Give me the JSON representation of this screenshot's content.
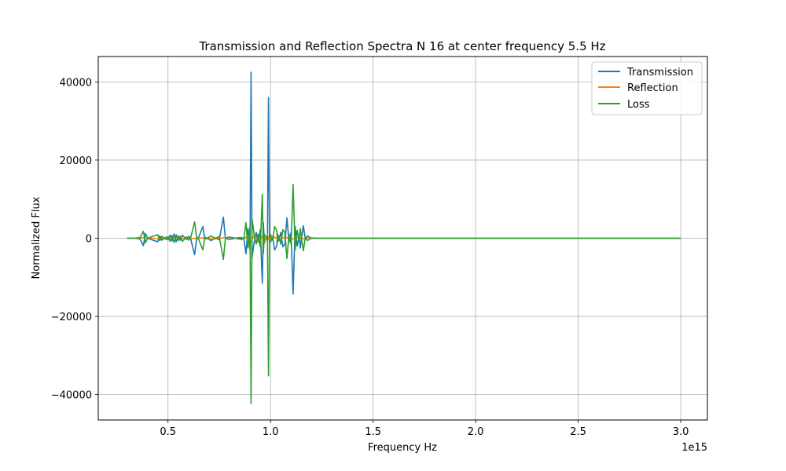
{
  "chart_data": {
    "type": "line",
    "title": "Transmission and Reflection Spectra N 16 at center frequency 5.5 Hz",
    "xlabel": "Frequency Hz",
    "ylabel": "Normalized Flux",
    "x_offset_label": "1e15",
    "xlim": [
      0.16,
      3.13
    ],
    "ylim": [
      -46500,
      46500
    ],
    "x_ticks": [
      0.5,
      1.0,
      1.5,
      2.0,
      2.5,
      3.0
    ],
    "x_tick_labels": [
      "0.5",
      "1.0",
      "1.5",
      "2.0",
      "2.5",
      "3.0"
    ],
    "y_ticks": [
      -40000,
      -20000,
      0,
      20000,
      40000
    ],
    "y_tick_labels": [
      "−40000",
      "−20000",
      "0",
      "20000",
      "40000"
    ],
    "grid": true,
    "legend_position": "top-right",
    "series": [
      {
        "name": "Transmission",
        "color": "#1f77b4",
        "x": [
          0.3,
          0.34,
          0.36,
          0.38,
          0.39,
          0.4,
          0.45,
          0.46,
          0.47,
          0.49,
          0.5,
          0.51,
          0.52,
          0.53,
          0.54,
          0.55,
          0.56,
          0.57,
          0.59,
          0.6,
          0.61,
          0.63,
          0.64,
          0.65,
          0.67,
          0.68,
          0.69,
          0.71,
          0.73,
          0.75,
          0.77,
          0.78,
          0.8,
          0.83,
          0.85,
          0.87,
          0.88,
          0.89,
          0.9,
          0.905,
          0.91,
          0.92,
          0.93,
          0.94,
          0.95,
          0.96,
          0.965,
          0.97,
          0.98,
          0.985,
          0.99,
          0.995,
          1.0,
          1.01,
          1.02,
          1.03,
          1.035,
          1.04,
          1.05,
          1.06,
          1.07,
          1.08,
          1.09,
          1.1,
          1.11,
          1.12,
          1.13,
          1.14,
          1.145,
          1.15,
          1.16,
          1.17,
          1.18,
          1.19,
          1.2,
          1.21,
          1.22,
          1.23,
          1.24,
          1.3,
          1.55,
          3.0
        ],
        "values": [
          0,
          0,
          200,
          -1900,
          1200,
          0,
          -900,
          600,
          -500,
          300,
          -400,
          800,
          -700,
          1100,
          -900,
          600,
          -500,
          800,
          -300,
          500,
          0,
          -4200,
          0,
          300,
          3000,
          -300,
          0,
          -600,
          0,
          -400,
          5400,
          0,
          -300,
          0,
          200,
          0,
          -4000,
          2500,
          -3000,
          42500,
          -5000,
          -1000,
          1500,
          -1000,
          2200,
          -11500,
          4000,
          -1000,
          0,
          -600,
          36000,
          0,
          -1000,
          500,
          -3000,
          -2000,
          1000,
          -600,
          1500,
          -2200,
          -1500,
          5200,
          -1000,
          1500,
          -14300,
          3000,
          -2000,
          600,
          -2500,
          -400,
          3200,
          -300,
          600,
          300,
          0,
          0,
          0,
          0,
          0,
          0,
          0,
          0
        ]
      },
      {
        "name": "Reflection",
        "color": "#ff7f0e",
        "x": [
          0.3,
          0.38,
          0.45,
          0.53,
          0.6,
          0.67,
          0.73,
          0.8,
          0.86,
          0.89,
          0.905,
          0.92,
          0.94,
          0.96,
          0.97,
          0.985,
          0.995,
          1.01,
          1.04,
          1.07,
          1.1,
          1.14,
          1.16,
          1.2,
          1.25,
          3.0
        ],
        "values": [
          0,
          150,
          -100,
          200,
          -150,
          100,
          -200,
          300,
          -400,
          600,
          -1000,
          800,
          -600,
          500,
          -1300,
          900,
          -700,
          500,
          -300,
          300,
          -200,
          200,
          -100,
          100,
          0,
          0
        ]
      },
      {
        "name": "Loss",
        "color": "#2ca02c",
        "x": [
          0.3,
          0.34,
          0.36,
          0.38,
          0.39,
          0.4,
          0.45,
          0.46,
          0.47,
          0.49,
          0.5,
          0.51,
          0.52,
          0.53,
          0.54,
          0.55,
          0.56,
          0.57,
          0.59,
          0.6,
          0.61,
          0.63,
          0.64,
          0.65,
          0.67,
          0.68,
          0.69,
          0.71,
          0.73,
          0.75,
          0.77,
          0.78,
          0.8,
          0.83,
          0.85,
          0.87,
          0.88,
          0.89,
          0.9,
          0.905,
          0.91,
          0.92,
          0.93,
          0.94,
          0.95,
          0.96,
          0.965,
          0.97,
          0.98,
          0.985,
          0.99,
          0.995,
          1.0,
          1.01,
          1.02,
          1.03,
          1.035,
          1.04,
          1.05,
          1.06,
          1.07,
          1.08,
          1.09,
          1.1,
          1.11,
          1.12,
          1.13,
          1.14,
          1.145,
          1.15,
          1.16,
          1.17,
          1.18,
          1.19,
          1.2,
          1.21,
          1.22,
          1.23,
          1.24,
          1.3,
          1.55,
          3.0
        ],
        "values": [
          0,
          0,
          -200,
          1800,
          -1200,
          0,
          900,
          -600,
          500,
          -300,
          400,
          -800,
          700,
          -1100,
          900,
          -600,
          500,
          -800,
          300,
          -500,
          0,
          4200,
          0,
          -300,
          -3000,
          300,
          0,
          600,
          0,
          400,
          -5400,
          0,
          300,
          0,
          -200,
          0,
          4000,
          -2500,
          3000,
          -42300,
          5000,
          1000,
          -1500,
          1000,
          -2200,
          11300,
          -4000,
          1000,
          0,
          600,
          -35200,
          0,
          1000,
          -500,
          3000,
          2000,
          -1000,
          600,
          -1500,
          2200,
          1500,
          -5200,
          1000,
          -1500,
          13800,
          -3000,
          2000,
          -600,
          2500,
          400,
          -3200,
          300,
          -600,
          -300,
          0,
          0,
          0,
          0,
          0,
          0,
          0,
          0
        ]
      }
    ]
  }
}
